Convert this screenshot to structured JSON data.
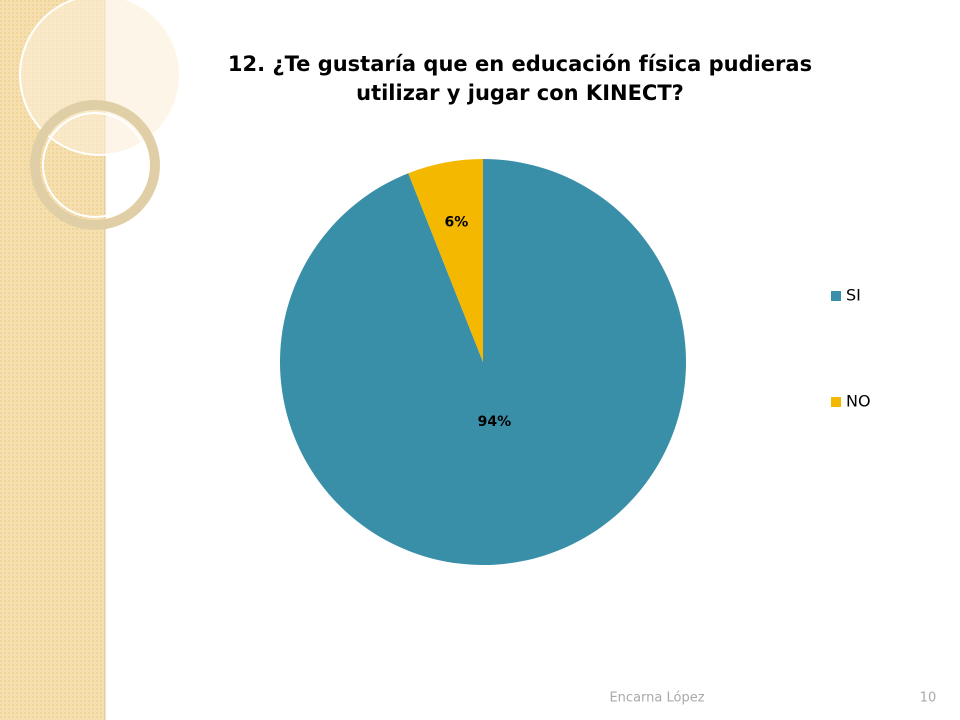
{
  "chart_data": {
    "type": "pie",
    "title": "12. ¿Te gustaría que en educación física pudieras utilizar y jugar con KINECT?",
    "categories": [
      "SI",
      "NO"
    ],
    "values": [
      94,
      6
    ],
    "value_labels": [
      "94%",
      "6%"
    ],
    "colors": [
      "#3a8fa8",
      "#f5b800"
    ],
    "legend": "right"
  },
  "footer": {
    "author": "Encarna López",
    "page": 10
  }
}
